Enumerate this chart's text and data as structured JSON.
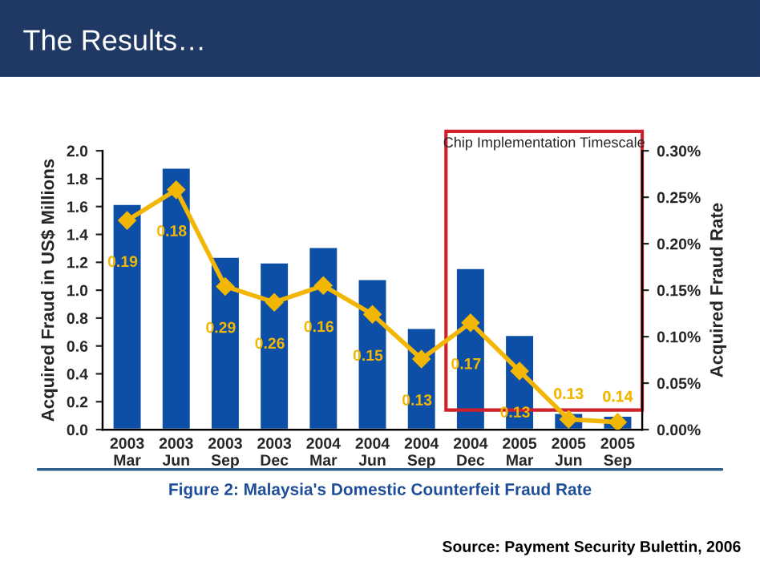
{
  "chart_data": {
    "type": "bar",
    "title": "The Results…",
    "categories": [
      "2003\nMar",
      "2003\nJun",
      "2003\nSep",
      "2003\nDec",
      "2004\nMar",
      "2004\nJun",
      "2004\nSep",
      "2004\nDec",
      "2005\nMar",
      "2005\nJun",
      "2005\nSep"
    ],
    "series": [
      {
        "color": "#0d4fa6",
        "values": [
          1.62,
          1.88,
          1.24,
          1.2,
          1.31,
          1.08,
          0.73,
          1.16,
          0.68,
          0.12,
          0.1
        ]
      },
      {
        "type": "line",
        "axis": "y2",
        "color": "#f2b705",
        "marker": "diamond",
        "values": [
          0.225,
          0.258,
          0.154,
          0.137,
          0.155,
          0.124,
          0.076,
          0.115,
          0.063,
          0.011,
          0.008
        ]
      }
    ],
    "ylabel": "Acquired Fraud in US$ Millions",
    "y2label": "Acquired Fraud Rate",
    "ylim": [
      0,
      2.0
    ],
    "yticks": [
      {
        "value": 0,
        "label": "0.0"
      },
      0.2,
      0.4,
      0.6,
      0.8,
      {
        "value": 1,
        "label": "1.0"
      },
      1.2,
      1.4,
      1.6,
      1.8,
      {
        "value": 2,
        "label": "2.0"
      }
    ],
    "y2lim": [
      0,
      0.3
    ],
    "y2ticks": [
      {
        "value": 0,
        "label": "0.00%"
      },
      {
        "value": 0.05,
        "label": "0.05%"
      },
      {
        "value": 0.1,
        "label": "0.10%"
      },
      {
        "value": 0.15,
        "label": "0.15%"
      },
      {
        "value": 0.2,
        "label": "0.20%"
      },
      {
        "value": 0.25,
        "label": "0.25%"
      },
      {
        "value": 0.3,
        "label": "0.30%"
      }
    ],
    "annotations": [
      "0.19",
      "0.18",
      "0.29",
      "0.26",
      "0.16",
      "0.15",
      "0.13",
      "0.17",
      "0.13",
      "0.13",
      "0.14",
      "Chip Implementation Timescale",
      "Figure 2: Malaysia's Domestic Counterfeit Fraud Rate",
      "Source: Payment Security Bulettin, 2006"
    ],
    "grid": false,
    "legend": false
  }
}
